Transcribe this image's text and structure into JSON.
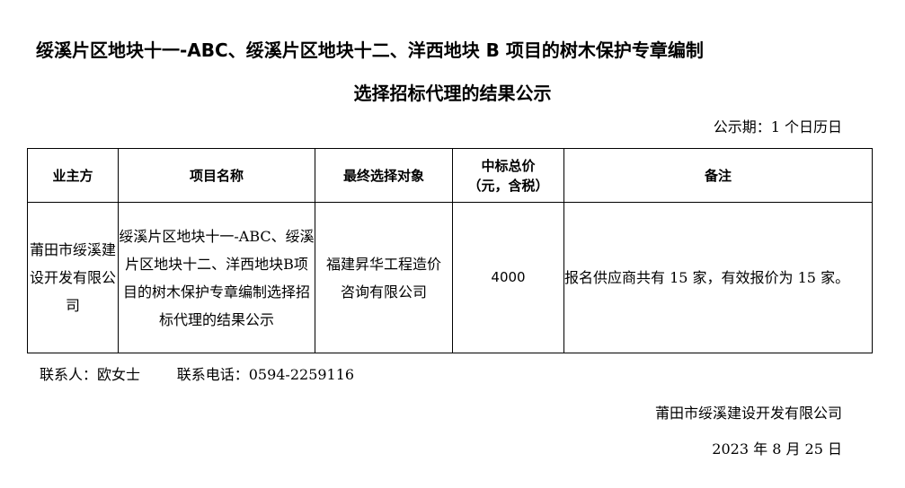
{
  "title_line1": "绥溪片区地块十一-ABC、绥溪片区地块十二、洋西地块 B 项目的树木保护专章编制",
  "title_line2": "选择招标代理的结果公示",
  "period": "公示期：1 个日历日",
  "table": {
    "headers": [
      "业主方",
      "项目名称",
      "最终选择对象",
      "中标总价\n（元，含税）",
      "备注"
    ],
    "header_price_line1": "中标总价",
    "header_price_line2": "（元，含税）",
    "row": {
      "owner": "莆田市绥溪建设开发有限公司",
      "project": "绥溪片区地块十一-ABC、绥溪片区地块十二、洋西地块B项目的树木保护专章编制选择招标代理的结果公示",
      "winner": "福建昇华工程造价咨询有限公司",
      "price": "4000",
      "remark": "报名供应商共有 15 家，有效报价为 15 家。"
    }
  },
  "contact": {
    "person": "联系人：欧女士",
    "phone": "联系电话：0594-2259116"
  },
  "signature": "莆田市绥溪建设开发有限公司",
  "date": "2023 年 8 月 25 日"
}
